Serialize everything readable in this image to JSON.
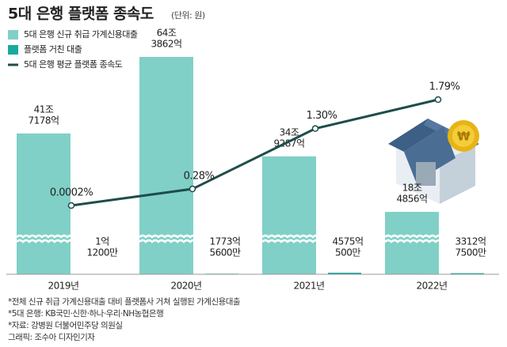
{
  "chart_data": {
    "type": "bar_line",
    "title": "5대 은행 플랫폼 종속도",
    "unit": "(단위: 원)",
    "categories": [
      "2019년",
      "2020년",
      "2021년",
      "2022년"
    ],
    "series": [
      {
        "name": "5대 은행 신규 취급 가계신용대출",
        "color": "#80d0c7",
        "kind": "bar",
        "values": [
          417178,
          643862,
          349287,
          184856
        ],
        "value_labels": [
          [
            "41조",
            "7178억"
          ],
          [
            "64조",
            "3862억"
          ],
          [
            "34조",
            "9287억"
          ],
          [
            "18조",
            "4856억"
          ]
        ]
      },
      {
        "name": "플랫폼 거친 대출",
        "color": "#1aa99e",
        "kind": "bar",
        "values": [
          1.12,
          1773.56,
          4575.05,
          3312.75
        ],
        "value_labels": [
          [
            "1억",
            "1200만"
          ],
          [
            "1773억",
            "5600만"
          ],
          [
            "4575억",
            "500만"
          ],
          [
            "3312억",
            "7500만"
          ]
        ]
      },
      {
        "name": "5대 은행 평균 플랫폼 종속도",
        "color": "#1d4d4b",
        "kind": "line",
        "axis": "y2",
        "values": [
          0.0002,
          0.28,
          1.3,
          1.79
        ],
        "value_labels": [
          "0.0002%",
          "0.28%",
          "1.30%",
          "1.79%"
        ]
      }
    ],
    "notes": [
      "*전체 신규 취급 가계신용대출 대비 플랫폼사 거쳐 실행된 가계신용대출",
      "*5대 은행: KB국민·신한·하나·우리·NH농협은행",
      "*자료: 강병원 더불어민주당 의원실",
      "그래픽: 조수아 디자인기자"
    ]
  }
}
